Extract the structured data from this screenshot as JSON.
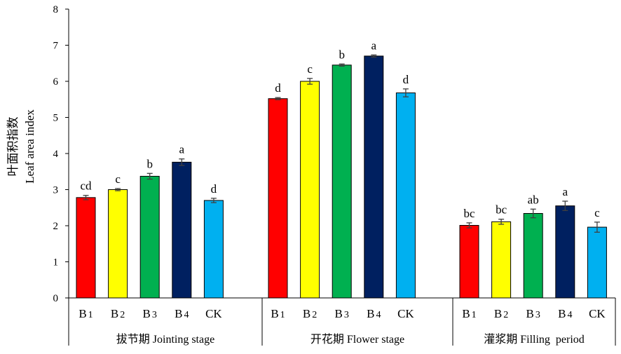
{
  "chart_data": {
    "type": "bar",
    "ylabel_cn": "叶面积指数",
    "ylabel": "Leaf area index",
    "ylim": [
      0,
      8
    ],
    "yticks": [
      0,
      1,
      2,
      3,
      4,
      5,
      6,
      7,
      8
    ],
    "grid": false,
    "legend": "none",
    "groups": [
      {
        "label": "拔节期 Jointing stage",
        "bars": [
          {
            "category": "B1",
            "value": 2.78,
            "error": 0.06,
            "letter": "cd",
            "color": "#FF0000"
          },
          {
            "category": "B2",
            "value": 3.0,
            "error": 0.03,
            "letter": "c",
            "color": "#FFFF00"
          },
          {
            "category": "B3",
            "value": 3.37,
            "error": 0.08,
            "letter": "b",
            "color": "#00B050"
          },
          {
            "category": "B4",
            "value": 3.76,
            "error": 0.09,
            "letter": "a",
            "color": "#002060"
          },
          {
            "category": "CK",
            "value": 2.7,
            "error": 0.06,
            "letter": "d",
            "color": "#00B0F0"
          }
        ]
      },
      {
        "label": "开花期 Flower stage",
        "bars": [
          {
            "category": "B1",
            "value": 5.52,
            "error": 0.03,
            "letter": "d",
            "color": "#FF0000"
          },
          {
            "category": "B2",
            "value": 6.0,
            "error": 0.08,
            "letter": "c",
            "color": "#FFFF00"
          },
          {
            "category": "B3",
            "value": 6.45,
            "error": 0.03,
            "letter": "b",
            "color": "#00B050"
          },
          {
            "category": "B4",
            "value": 6.7,
            "error": 0.03,
            "letter": "a",
            "color": "#002060"
          },
          {
            "category": "CK",
            "value": 5.68,
            "error": 0.11,
            "letter": "d",
            "color": "#00B0F0"
          }
        ]
      },
      {
        "label": "灌浆期 Filling  period",
        "bars": [
          {
            "category": "B1",
            "value": 2.01,
            "error": 0.07,
            "letter": "bc",
            "color": "#FF0000"
          },
          {
            "category": "B2",
            "value": 2.11,
            "error": 0.07,
            "letter": "bc",
            "color": "#FFFF00"
          },
          {
            "category": "B3",
            "value": 2.34,
            "error": 0.12,
            "letter": "ab",
            "color": "#00B050"
          },
          {
            "category": "B4",
            "value": 2.55,
            "error": 0.13,
            "letter": "a",
            "color": "#002060"
          },
          {
            "category": "CK",
            "value": 1.96,
            "error": 0.14,
            "letter": "c",
            "color": "#00B0F0"
          }
        ]
      }
    ]
  }
}
